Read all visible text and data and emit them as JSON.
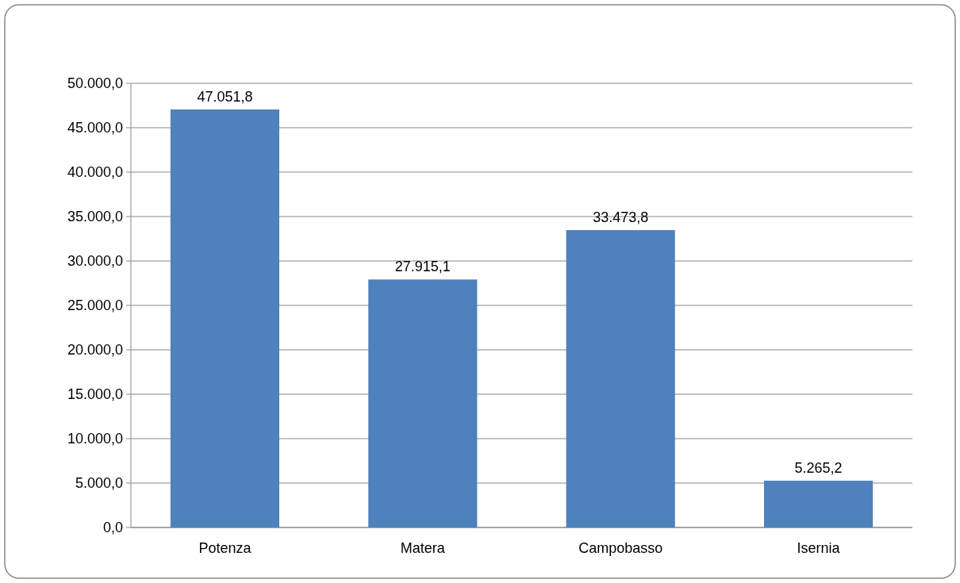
{
  "chart_data": {
    "type": "bar",
    "categories": [
      "Potenza",
      "Matera",
      "Campobasso",
      "Isernia"
    ],
    "values": [
      47051.8,
      27915.1,
      33473.8,
      5265.2
    ],
    "value_labels": [
      "47.051,8",
      "27.915,1",
      "33.473,8",
      "5.265,2"
    ],
    "color": "#4f81bd",
    "ylim": [
      0,
      50000
    ],
    "yticks": [
      {
        "value": 0,
        "label": "0,0"
      },
      {
        "value": 5000,
        "label": "5.000,0"
      },
      {
        "value": 10000,
        "label": "10.000,0"
      },
      {
        "value": 15000,
        "label": "15.000,0"
      },
      {
        "value": 20000,
        "label": "20.000,0"
      },
      {
        "value": 25000,
        "label": "25.000,0"
      },
      {
        "value": 30000,
        "label": "30.000,0"
      },
      {
        "value": 35000,
        "label": "35.000,0"
      },
      {
        "value": 40000,
        "label": "40.000,0"
      },
      {
        "value": 45000,
        "label": "45.000,0"
      },
      {
        "value": 50000,
        "label": "50.000,0"
      }
    ],
    "grid": "y"
  }
}
